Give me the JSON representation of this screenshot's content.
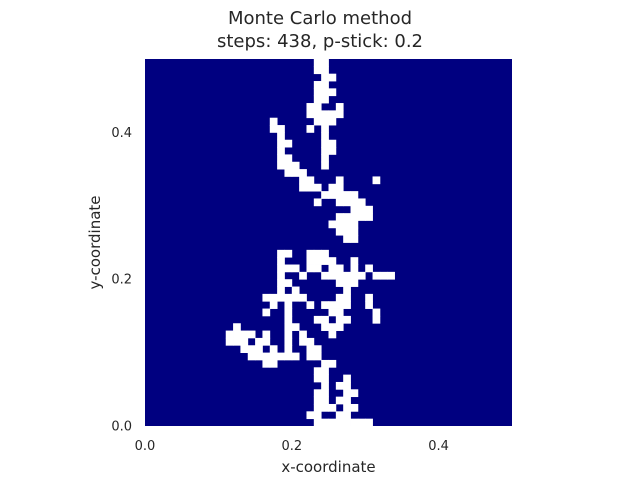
{
  "title_line1": "Monte Carlo method",
  "title_line2": "steps: 438, p-stick: 0.2",
  "chart_data": {
    "type": "heatmap",
    "title": "Monte Carlo method\nsteps: 438, p-stick: 0.2",
    "xlabel": "x-coordinate",
    "ylabel": "y-coordinate",
    "xlim": [
      0,
      0.5
    ],
    "ylim": [
      0,
      0.5
    ],
    "xticks": [
      0.0,
      0.2,
      0.4
    ],
    "yticks": [
      0.0,
      0.2,
      0.4
    ],
    "xtick_labels": [
      "0.0",
      "0.2",
      "0.4"
    ],
    "ytick_labels": [
      "0.0",
      "0.2",
      "0.4"
    ],
    "grid_size": 50,
    "cell_size": 0.01,
    "colors": {
      "background": "#000080",
      "occupied": "#ffffff"
    },
    "occupied_cells": [
      [
        23,
        0
      ],
      [
        24,
        0
      ],
      [
        25,
        0
      ],
      [
        26,
        0
      ],
      [
        27,
        0
      ],
      [
        28,
        0
      ],
      [
        29,
        0
      ],
      [
        30,
        0
      ],
      [
        22,
        1
      ],
      [
        23,
        1
      ],
      [
        26,
        1
      ],
      [
        27,
        1
      ],
      [
        23,
        2
      ],
      [
        24,
        2
      ],
      [
        25,
        2
      ],
      [
        27,
        2
      ],
      [
        28,
        2
      ],
      [
        23,
        3
      ],
      [
        24,
        3
      ],
      [
        26,
        3
      ],
      [
        27,
        3
      ],
      [
        23,
        4
      ],
      [
        24,
        4
      ],
      [
        27,
        4
      ],
      [
        28,
        4
      ],
      [
        24,
        5
      ],
      [
        26,
        5
      ],
      [
        27,
        5
      ],
      [
        23,
        6
      ],
      [
        24,
        6
      ],
      [
        27,
        6
      ],
      [
        23,
        7
      ],
      [
        24,
        7
      ],
      [
        16,
        8
      ],
      [
        17,
        8
      ],
      [
        24,
        8
      ],
      [
        25,
        8
      ],
      [
        14,
        9
      ],
      [
        15,
        9
      ],
      [
        16,
        9
      ],
      [
        17,
        9
      ],
      [
        18,
        9
      ],
      [
        19,
        9
      ],
      [
        20,
        9
      ],
      [
        22,
        9
      ],
      [
        23,
        9
      ],
      [
        13,
        10
      ],
      [
        14,
        10
      ],
      [
        15,
        10
      ],
      [
        17,
        10
      ],
      [
        19,
        10
      ],
      [
        22,
        10
      ],
      [
        23,
        10
      ],
      [
        11,
        11
      ],
      [
        12,
        11
      ],
      [
        13,
        11
      ],
      [
        15,
        11
      ],
      [
        16,
        11
      ],
      [
        19,
        11
      ],
      [
        21,
        11
      ],
      [
        22,
        11
      ],
      [
        11,
        12
      ],
      [
        12,
        12
      ],
      [
        13,
        12
      ],
      [
        14,
        12
      ],
      [
        16,
        12
      ],
      [
        19,
        12
      ],
      [
        21,
        12
      ],
      [
        25,
        12
      ],
      [
        12,
        13
      ],
      [
        19,
        13
      ],
      [
        20,
        13
      ],
      [
        24,
        13
      ],
      [
        25,
        13
      ],
      [
        26,
        13
      ],
      [
        19,
        14
      ],
      [
        23,
        14
      ],
      [
        24,
        14
      ],
      [
        26,
        14
      ],
      [
        27,
        14
      ],
      [
        31,
        14
      ],
      [
        16,
        15
      ],
      [
        19,
        15
      ],
      [
        25,
        15
      ],
      [
        26,
        15
      ],
      [
        31,
        15
      ],
      [
        17,
        16
      ],
      [
        19,
        16
      ],
      [
        22,
        16
      ],
      [
        24,
        16
      ],
      [
        25,
        16
      ],
      [
        26,
        16
      ],
      [
        27,
        16
      ],
      [
        30,
        16
      ],
      [
        16,
        17
      ],
      [
        17,
        17
      ],
      [
        18,
        17
      ],
      [
        19,
        17
      ],
      [
        20,
        17
      ],
      [
        21,
        17
      ],
      [
        26,
        17
      ],
      [
        27,
        17
      ],
      [
        30,
        17
      ],
      [
        18,
        18
      ],
      [
        20,
        18
      ],
      [
        27,
        18
      ],
      [
        18,
        19
      ],
      [
        19,
        19
      ],
      [
        26,
        19
      ],
      [
        27,
        19
      ],
      [
        28,
        19
      ],
      [
        18,
        20
      ],
      [
        21,
        20
      ],
      [
        24,
        20
      ],
      [
        25,
        20
      ],
      [
        26,
        20
      ],
      [
        27,
        20
      ],
      [
        28,
        20
      ],
      [
        29,
        20
      ],
      [
        31,
        20
      ],
      [
        32,
        20
      ],
      [
        33,
        20
      ],
      [
        18,
        21
      ],
      [
        19,
        21
      ],
      [
        20,
        21
      ],
      [
        22,
        21
      ],
      [
        23,
        21
      ],
      [
        25,
        21
      ],
      [
        26,
        21
      ],
      [
        28,
        21
      ],
      [
        30,
        21
      ],
      [
        18,
        22
      ],
      [
        22,
        22
      ],
      [
        23,
        22
      ],
      [
        24,
        22
      ],
      [
        25,
        22
      ],
      [
        28,
        22
      ],
      [
        18,
        23
      ],
      [
        19,
        23
      ],
      [
        22,
        23
      ],
      [
        23,
        23
      ],
      [
        24,
        23
      ],
      [
        27,
        25
      ],
      [
        28,
        25
      ],
      [
        26,
        26
      ],
      [
        27,
        26
      ],
      [
        28,
        26
      ],
      [
        25,
        27
      ],
      [
        26,
        27
      ],
      [
        27,
        27
      ],
      [
        28,
        27
      ],
      [
        26,
        28
      ],
      [
        27,
        28
      ],
      [
        28,
        28
      ],
      [
        29,
        28
      ],
      [
        30,
        28
      ],
      [
        28,
        29
      ],
      [
        29,
        29
      ],
      [
        30,
        29
      ],
      [
        23,
        30
      ],
      [
        26,
        30
      ],
      [
        27,
        30
      ],
      [
        28,
        30
      ],
      [
        29,
        30
      ],
      [
        24,
        31
      ],
      [
        25,
        31
      ],
      [
        26,
        31
      ],
      [
        27,
        31
      ],
      [
        28,
        31
      ],
      [
        21,
        32
      ],
      [
        22,
        32
      ],
      [
        23,
        32
      ],
      [
        25,
        32
      ],
      [
        26,
        32
      ],
      [
        21,
        33
      ],
      [
        22,
        33
      ],
      [
        26,
        33
      ],
      [
        31,
        33
      ],
      [
        19,
        34
      ],
      [
        20,
        34
      ],
      [
        21,
        34
      ],
      [
        18,
        35
      ],
      [
        19,
        35
      ],
      [
        20,
        35
      ],
      [
        24,
        35
      ],
      [
        18,
        36
      ],
      [
        19,
        36
      ],
      [
        24,
        36
      ],
      [
        18,
        37
      ],
      [
        24,
        37
      ],
      [
        25,
        37
      ],
      [
        18,
        38
      ],
      [
        19,
        38
      ],
      [
        24,
        38
      ],
      [
        25,
        38
      ],
      [
        18,
        39
      ],
      [
        24,
        39
      ],
      [
        17,
        40
      ],
      [
        18,
        40
      ],
      [
        22,
        40
      ],
      [
        24,
        40
      ],
      [
        17,
        41
      ],
      [
        23,
        41
      ],
      [
        24,
        41
      ],
      [
        25,
        41
      ],
      [
        22,
        42
      ],
      [
        23,
        42
      ],
      [
        24,
        42
      ],
      [
        25,
        42
      ],
      [
        26,
        42
      ],
      [
        22,
        43
      ],
      [
        23,
        43
      ],
      [
        26,
        43
      ],
      [
        23,
        44
      ],
      [
        24,
        44
      ],
      [
        23,
        45
      ],
      [
        24,
        45
      ],
      [
        25,
        45
      ],
      [
        23,
        46
      ],
      [
        24,
        46
      ],
      [
        24,
        47
      ],
      [
        25,
        47
      ],
      [
        23,
        48
      ],
      [
        24,
        48
      ],
      [
        23,
        49
      ],
      [
        24,
        49
      ]
    ]
  }
}
